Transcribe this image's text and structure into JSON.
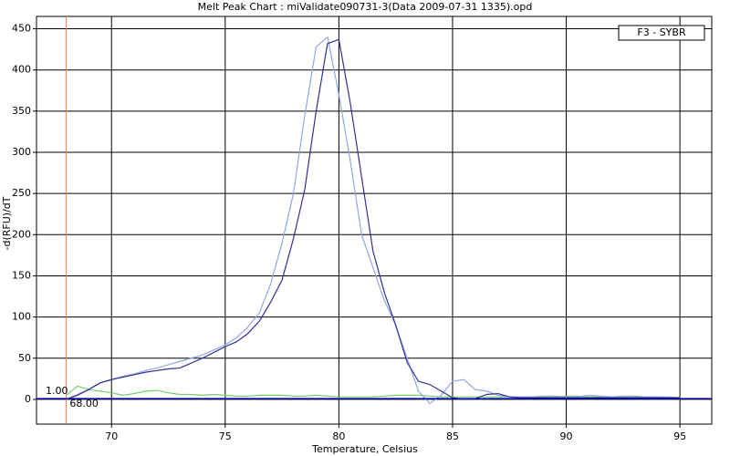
{
  "chart_data": {
    "type": "line",
    "title": "Melt Peak Chart : miValidate090731-3(Data 2009-07-31 1335).opd",
    "x_label": "Temperature, Celsius",
    "y_label": "-d(RFU)/dT",
    "legend": "F3 - SYBR",
    "grid": true,
    "xlim": [
      66.7,
      96.4
    ],
    "ylim": [
      -30,
      465
    ],
    "xticks": [
      70,
      75,
      80,
      85,
      90,
      95
    ],
    "yticks": [
      0,
      50,
      100,
      150,
      200,
      250,
      300,
      350,
      400,
      450
    ],
    "threshold": {
      "value": 1,
      "label": "1.00",
      "color": "#0000c0"
    },
    "marker_x": {
      "value": 68,
      "label": "68.00",
      "color": "#e08060"
    },
    "x": [
      68,
      68.5,
      69,
      69.5,
      70,
      70.5,
      71,
      71.5,
      72,
      72.5,
      73,
      73.5,
      74,
      74.5,
      75,
      75.5,
      76,
      76.5,
      77,
      77.5,
      78,
      78.5,
      79,
      79.5,
      80,
      80.5,
      81,
      81.5,
      82,
      82.5,
      83,
      83.5,
      84,
      84.5,
      85,
      85.5,
      86,
      86.5,
      87,
      87.5,
      88,
      88.5,
      89,
      89.5,
      90,
      90.5,
      91,
      91.5,
      92,
      92.5,
      93,
      93.5,
      94,
      94.5,
      95
    ],
    "series": [
      {
        "color": "#303098",
        "values": [
          0,
          5,
          12,
          20,
          24,
          27,
          30,
          33,
          35,
          37,
          38,
          44,
          50,
          57,
          64,
          70,
          80,
          95,
          118,
          145,
          195,
          255,
          350,
          432,
          437,
          360,
          270,
          180,
          130,
          90,
          45,
          22,
          18,
          10,
          2,
          0,
          1,
          6,
          7,
          3,
          2,
          2,
          2,
          2,
          2,
          2,
          2,
          2,
          2,
          2,
          2,
          2,
          2,
          2,
          2
        ]
      },
      {
        "color": "#90a8e0",
        "values": [
          0,
          6,
          12,
          20,
          24,
          28,
          31,
          35,
          38,
          42,
          46,
          50,
          54,
          60,
          66,
          75,
          88,
          105,
          140,
          190,
          250,
          345,
          428,
          440,
          370,
          290,
          200,
          160,
          120,
          90,
          50,
          10,
          -5,
          5,
          22,
          24,
          12,
          10,
          5,
          3,
          3,
          3,
          4,
          4,
          3,
          3,
          5,
          4,
          3,
          4,
          4,
          3,
          3,
          3,
          2
        ]
      },
      {
        "color": "#70d070",
        "values": [
          5,
          16,
          12,
          10,
          8,
          5,
          7,
          10,
          11,
          8,
          6,
          6,
          5,
          6,
          5,
          4,
          4,
          5,
          5,
          5,
          4,
          4,
          5,
          4,
          3,
          3,
          3,
          3,
          4,
          5,
          5,
          5,
          4,
          3,
          3,
          3,
          3,
          3,
          3,
          3,
          3,
          3,
          3,
          3,
          4,
          4,
          3,
          3,
          3,
          3,
          3,
          3,
          3,
          2,
          2
        ]
      }
    ]
  }
}
